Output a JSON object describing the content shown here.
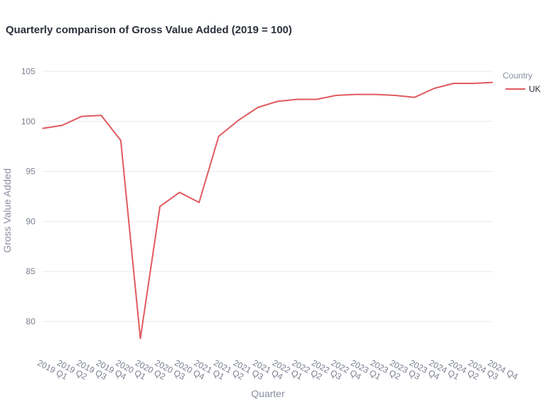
{
  "chart_data": {
    "type": "line",
    "title": "Quarterly comparison of Gross Value Added (2019 = 100)",
    "xlabel": "Quarter",
    "ylabel": "Gross Value Added",
    "ylim": [
      77,
      106
    ],
    "yticks": [
      80,
      85,
      90,
      95,
      100,
      105
    ],
    "grid": true,
    "legend": {
      "title": "Country",
      "placement": "top-right"
    },
    "categories": [
      "2019 Q1",
      "2019 Q2",
      "2019 Q3",
      "2019 Q4",
      "2020 Q1",
      "2020 Q2",
      "2020 Q3",
      "2020 Q4",
      "2021 Q1",
      "2021 Q2",
      "2021 Q3",
      "2021 Q4",
      "2022 Q1",
      "2022 Q2",
      "2022 Q3",
      "2022 Q4",
      "2023 Q1",
      "2023 Q2",
      "2023 Q3",
      "2023 Q4",
      "2024 Q1",
      "2024 Q2",
      "2024 Q3",
      "2024 Q4"
    ],
    "series": [
      {
        "name": "UK",
        "color": "#e05a5f",
        "values": [
          99.3,
          99.6,
          100.5,
          100.6,
          98.1,
          78.3,
          91.5,
          92.9,
          91.9,
          98.5,
          100.1,
          101.4,
          102.0,
          102.2,
          102.2,
          102.6,
          102.7,
          102.7,
          102.6,
          102.4,
          103.3,
          103.8,
          103.8,
          103.9
        ]
      }
    ]
  }
}
